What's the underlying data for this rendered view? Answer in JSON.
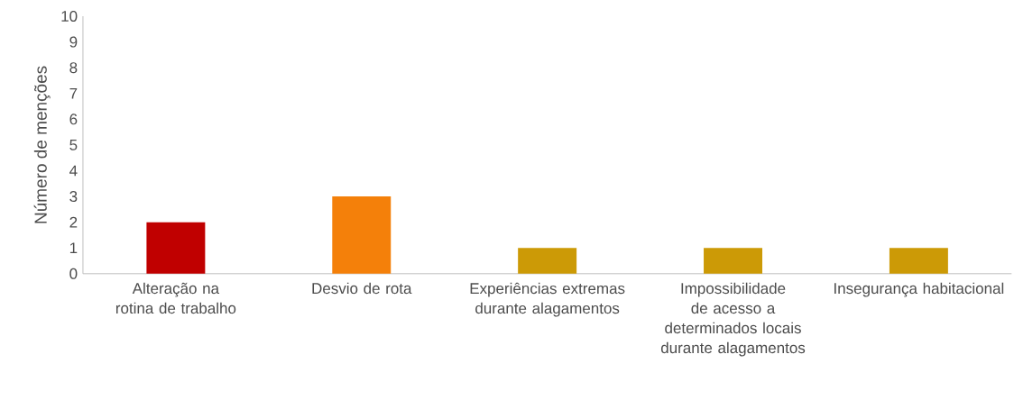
{
  "chart_data": {
    "type": "bar",
    "ylabel": "Número de menções",
    "categories": [
      "Alteração na rotina de trabalho",
      "Desvio de rota",
      "Experiências extremas durante alagamentos",
      "Impossibilidade de acesso a determinados locais durante alagamentos",
      "Insegurança habitacional"
    ],
    "values": [
      2,
      3,
      1,
      1,
      1
    ],
    "colors": [
      "#c00000",
      "#f4800a",
      "#cc9a06",
      "#cc9a06",
      "#cc9a06"
    ],
    "ylim": [
      0,
      10
    ],
    "yticks": [
      0,
      1,
      2,
      3,
      4,
      5,
      6,
      7,
      8,
      9,
      10
    ]
  }
}
